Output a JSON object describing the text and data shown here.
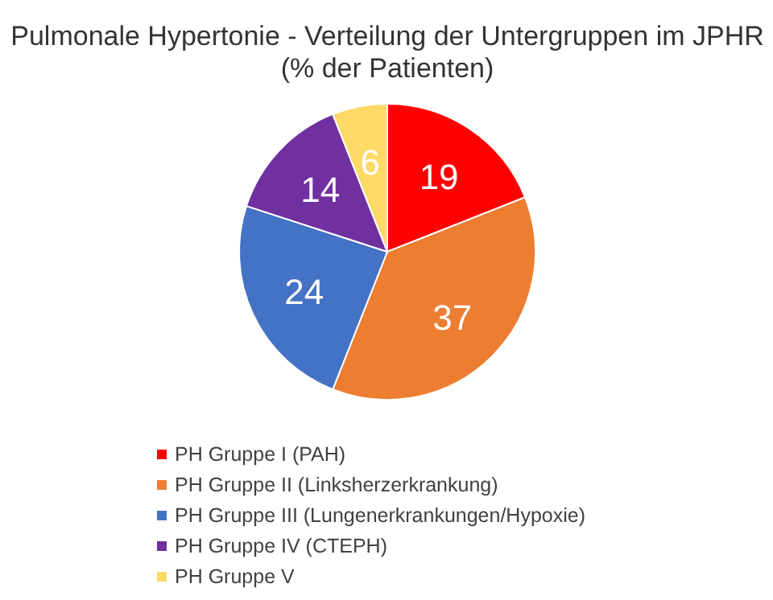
{
  "chart_data": {
    "type": "pie",
    "title": "Pulmonale Hypertonie - Verteilung der Untergruppen im JPHR (% der Patienten)",
    "categories": [
      "PH Gruppe I (PAH)",
      "PH Gruppe II (Linksherzerkrankung)",
      "PH Gruppe III (Lungenerkrankungen/Hypoxie)",
      "PH Gruppe IV (CTEPH)",
      "PH Gruppe V"
    ],
    "values": [
      19,
      37,
      24,
      14,
      6
    ],
    "colors": [
      "#ff0000",
      "#ed7d31",
      "#4472c4",
      "#7030a0",
      "#ffd966"
    ],
    "data_labels": true,
    "legend": "bottom"
  }
}
